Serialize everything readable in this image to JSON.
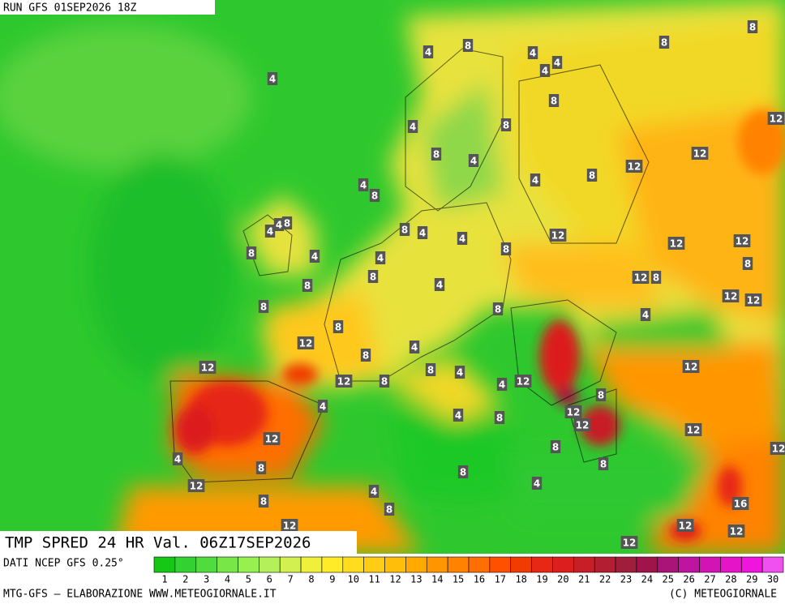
{
  "header": {
    "run": "RUN GFS 01SEP2026 18Z",
    "title": "TMP SPRED 24 HR Val. 06Z17SEP2026"
  },
  "footer": {
    "source": "DATI NCEP GFS 0.25°",
    "credit": "MTG-GFS — ELABORAZIONE WWW.METEOGIORNALE.IT",
    "copyright": "(C) METEOGIORNALE"
  },
  "legend": {
    "values": [
      1,
      2,
      3,
      4,
      5,
      6,
      7,
      8,
      9,
      10,
      11,
      12,
      13,
      14,
      15,
      16,
      17,
      18,
      19,
      20,
      21,
      22,
      23,
      24,
      25,
      26,
      27,
      28,
      29,
      30
    ],
    "colors": [
      "#14c814",
      "#32d232",
      "#50dc3c",
      "#78e646",
      "#96f050",
      "#b4f05a",
      "#d2f050",
      "#f0f03c",
      "#ffeb28",
      "#ffdc1e",
      "#ffcd14",
      "#ffbe0a",
      "#ffaa00",
      "#ff9600",
      "#ff8200",
      "#ff6e00",
      "#ff5000",
      "#f03c00",
      "#e62814",
      "#dc1e1e",
      "#c81e28",
      "#b41e32",
      "#a01e3c",
      "#a0144b",
      "#aa1478",
      "#be14a0",
      "#d214b4",
      "#e614c8",
      "#f014dc",
      "#f050f0"
    ]
  },
  "map": {
    "contour_labels": [
      4,
      8,
      4,
      4,
      4,
      4,
      8,
      8,
      8,
      4,
      8,
      8,
      4,
      12,
      12,
      4,
      8,
      4,
      8,
      12,
      8,
      4,
      4,
      8,
      4,
      8,
      4,
      4,
      8,
      12,
      12,
      12,
      8,
      4,
      8,
      8,
      4,
      12,
      8,
      12,
      12,
      8,
      8,
      4,
      8,
      12,
      8,
      4,
      12,
      12,
      8,
      8,
      4,
      4,
      12,
      12,
      8,
      4,
      12,
      12,
      4,
      8,
      12,
      12,
      12,
      8,
      4,
      8,
      8,
      12,
      8,
      4,
      4,
      8,
      8,
      16,
      12,
      12,
      12,
      12
    ]
  }
}
